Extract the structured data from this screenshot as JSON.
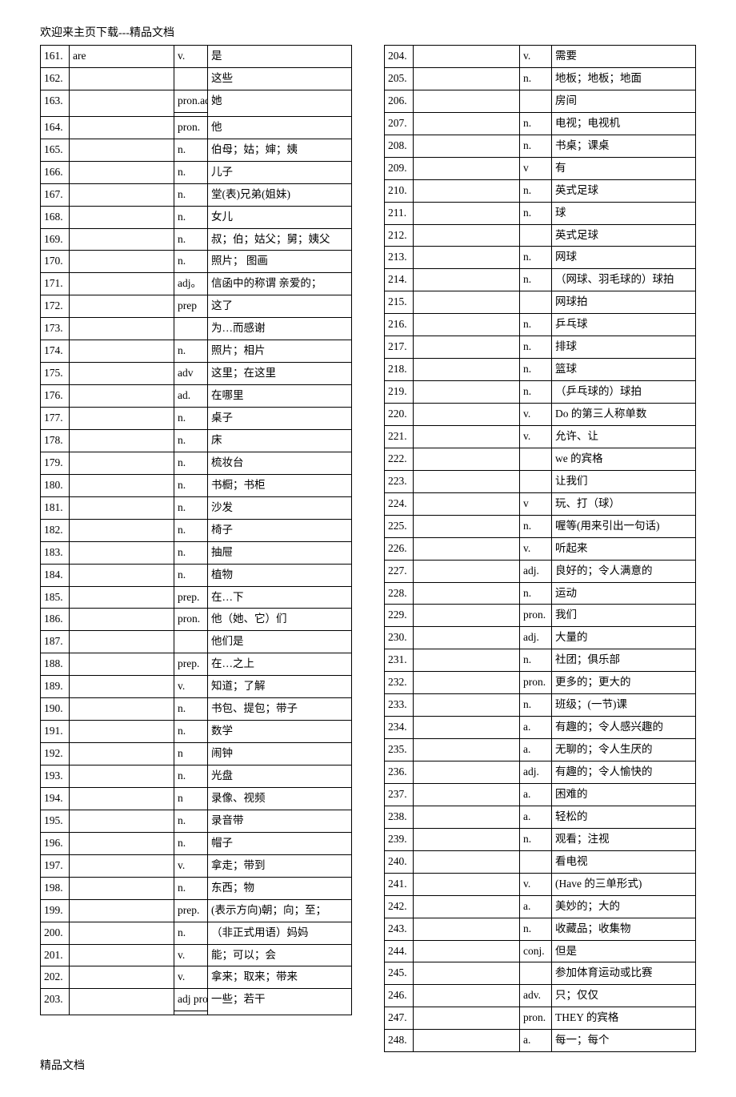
{
  "header_text": "欢迎来主页下载---精品文档",
  "footer_text": "精品文档",
  "left_rows": [
    {
      "num": "161.",
      "word": "are",
      "pos": "v.",
      "def": "是"
    },
    {
      "num": "162.",
      "word": "",
      "pos": "",
      "def": "这些"
    },
    {
      "num": "163.",
      "word": "",
      "pos": "pron.adj",
      "def": "她"
    },
    {
      "num": "",
      "word": "",
      "pos": "",
      "def": ""
    },
    {
      "num": "164.",
      "word": "",
      "pos": "pron.",
      "def": "他"
    },
    {
      "num": "165.",
      "word": "",
      "pos": "n.",
      "def": "伯母；姑；婶；姨"
    },
    {
      "num": "166.",
      "word": "",
      "pos": "n.",
      "def": "儿子"
    },
    {
      "num": "167.",
      "word": "",
      "pos": "n.",
      "def": "堂(表)兄弟(姐妹)"
    },
    {
      "num": "168.",
      "word": "",
      "pos": "n.",
      "def": "女儿"
    },
    {
      "num": "169.",
      "word": "",
      "pos": "n.",
      "def": "叔；伯；姑父；舅；姨父"
    },
    {
      "num": "170.",
      "word": "",
      "pos": "n.",
      "def": "照片； 图画"
    },
    {
      "num": "171.",
      "word": "",
      "pos": "adj。",
      "def": "信函中的称谓 亲爱的；"
    },
    {
      "num": "172.",
      "word": "",
      "pos": "prep",
      "def": "这了"
    },
    {
      "num": "173.",
      "word": "",
      "pos": "",
      "def": "为…而感谢"
    },
    {
      "num": "174.",
      "word": "",
      "pos": "n.",
      "def": "照片；相片"
    },
    {
      "num": "175.",
      "word": "",
      "pos": "adv",
      "def": "这里；在这里"
    },
    {
      "num": "176.",
      "word": "",
      "pos": "ad.",
      "def": "在哪里"
    },
    {
      "num": "177.",
      "word": "",
      "pos": "n.",
      "def": "桌子"
    },
    {
      "num": "178.",
      "word": "",
      "pos": "n.",
      "def": "床"
    },
    {
      "num": "179.",
      "word": "",
      "pos": "n.",
      "def": "梳妆台"
    },
    {
      "num": "180.",
      "word": "",
      "pos": "n.",
      "def": "书橱；书柜"
    },
    {
      "num": "181.",
      "word": "",
      "pos": "n.",
      "def": "沙发"
    },
    {
      "num": "182.",
      "word": "",
      "pos": "n.",
      "def": "椅子"
    },
    {
      "num": "183.",
      "word": "",
      "pos": "n.",
      "def": "抽屉"
    },
    {
      "num": "184.",
      "word": "",
      "pos": "n.",
      "def": "植物"
    },
    {
      "num": "185.",
      "word": "",
      "pos": "prep.",
      "def": "在…下"
    },
    {
      "num": "186.",
      "word": "",
      "pos": "pron.",
      "def": "他（她、它）们"
    },
    {
      "num": "187.",
      "word": "",
      "pos": "",
      "def": "他们是"
    },
    {
      "num": "188.",
      "word": "",
      "pos": "prep.",
      "def": "在…之上"
    },
    {
      "num": "189.",
      "word": "",
      "pos": "v.",
      "def": "知道；了解"
    },
    {
      "num": "190.",
      "word": "",
      "pos": "n.",
      "def": "书包、提包；带子"
    },
    {
      "num": "191.",
      "word": "",
      "pos": "n.",
      "def": "数学"
    },
    {
      "num": "192.",
      "word": "",
      "pos": "n",
      "def": "闹钟"
    },
    {
      "num": "193.",
      "word": "",
      "pos": "n.",
      "def": "光盘"
    },
    {
      "num": "194.",
      "word": "",
      "pos": "n",
      "def": "录像、视频"
    },
    {
      "num": "195.",
      "word": "",
      "pos": "n.",
      "def": "录音带"
    },
    {
      "num": "196.",
      "word": "",
      "pos": "n.",
      "def": "帽子"
    },
    {
      "num": "197.",
      "word": "",
      "pos": "v.",
      "def": "拿走；带到"
    },
    {
      "num": "198.",
      "word": "",
      "pos": "n.",
      "def": "东西；物"
    },
    {
      "num": "199.",
      "word": "",
      "pos": "prep.",
      "def": "(表示方向)朝；向；至；"
    },
    {
      "num": "200.",
      "word": "",
      "pos": "n.",
      "def": "（非正式用语）妈妈"
    },
    {
      "num": "201.",
      "word": "",
      "pos": "v.",
      "def": "能；可以；会"
    },
    {
      "num": "202.",
      "word": "",
      "pos": "v.",
      "def": "拿来；取来；带来"
    },
    {
      "num": "203.",
      "word": "",
      "pos": "adj pron",
      "def": "一些；若干"
    },
    {
      "num": "",
      "word": "",
      "pos": "",
      "def": ""
    }
  ],
  "left_rowspans": {
    "2": {
      "num": 2,
      "word": 2,
      "def": 2
    },
    "43": {
      "num": 2,
      "word": 2,
      "def": 2
    }
  },
  "right_rows": [
    {
      "num": "204.",
      "word": "",
      "pos": "v.",
      "def": "需要"
    },
    {
      "num": "205.",
      "word": "",
      "pos": "n.",
      "def": "地板；地板；地面"
    },
    {
      "num": "206.",
      "word": "",
      "pos": "",
      "def": "房间"
    },
    {
      "num": "207.",
      "word": "",
      "pos": "n.",
      "def": "电视；电视机"
    },
    {
      "num": "208.",
      "word": "",
      "pos": "n.",
      "def": "书桌；课桌"
    },
    {
      "num": "209.",
      "word": "",
      "pos": "v",
      "def": "有"
    },
    {
      "num": "210.",
      "word": "",
      "pos": "n.",
      "def": "英式足球"
    },
    {
      "num": "211.",
      "word": "",
      "pos": "n.",
      "def": "球"
    },
    {
      "num": "212.",
      "word": "",
      "pos": "",
      "def": "英式足球"
    },
    {
      "num": "213.",
      "word": "",
      "pos": "n.",
      "def": "网球"
    },
    {
      "num": "214.",
      "word": "",
      "pos": "n.",
      "def": "（网球、羽毛球的）球拍"
    },
    {
      "num": "215.",
      "word": "",
      "pos": "",
      "def": "网球拍"
    },
    {
      "num": "216.",
      "word": "",
      "pos": "n.",
      "def": "乒乓球"
    },
    {
      "num": "217.",
      "word": "",
      "pos": "n.",
      "def": "排球"
    },
    {
      "num": "218.",
      "word": "",
      "pos": "n.",
      "def": "篮球"
    },
    {
      "num": "219.",
      "word": "",
      "pos": "n.",
      "def": "（乒乓球的）球拍"
    },
    {
      "num": "220.",
      "word": "",
      "pos": "v.",
      "def": "Do 的第三人称单数"
    },
    {
      "num": "221.",
      "word": "",
      "pos": "v.",
      "def": "允许、让"
    },
    {
      "num": "222.",
      "word": "",
      "pos": "",
      "def": "we 的宾格"
    },
    {
      "num": "223.",
      "word": "",
      "pos": "",
      "def": "让我们"
    },
    {
      "num": "224.",
      "word": "",
      "pos": "v",
      "def": "玩、打（球）"
    },
    {
      "num": "225.",
      "word": "",
      "pos": "n.",
      "def": "喔等(用来引出一句话)"
    },
    {
      "num": "226.",
      "word": "",
      "pos": "v.",
      "def": "听起来"
    },
    {
      "num": "227.",
      "word": "",
      "pos": "adj.",
      "def": "良好的；令人满意的"
    },
    {
      "num": "228.",
      "word": "",
      "pos": "n.",
      "def": "运动"
    },
    {
      "num": "229.",
      "word": "",
      "pos": "pron.",
      "def": "我们"
    },
    {
      "num": "230.",
      "word": "",
      "pos": "adj.",
      "def": "大量的"
    },
    {
      "num": "231.",
      "word": "",
      "pos": "n.",
      "def": "社团；俱乐部"
    },
    {
      "num": "232.",
      "word": "",
      "pos": "pron.",
      "def": "更多的；更大的"
    },
    {
      "num": "233.",
      "word": "",
      "pos": "n.",
      "def": "班级；(一节)课"
    },
    {
      "num": "234.",
      "word": "",
      "pos": "a.",
      "def": "有趣的；令人感兴趣的"
    },
    {
      "num": "235.",
      "word": "",
      "pos": "a.",
      "def": "无聊的；令人生厌的"
    },
    {
      "num": "236.",
      "word": "",
      "pos": "adj.",
      "def": "有趣的；令人愉快的"
    },
    {
      "num": "237.",
      "word": "",
      "pos": "a.",
      "def": "困难的"
    },
    {
      "num": "238.",
      "word": "",
      "pos": "a.",
      "def": "轻松的"
    },
    {
      "num": "239.",
      "word": "",
      "pos": "n.",
      "def": "观看；注视"
    },
    {
      "num": "240.",
      "word": "",
      "pos": "",
      "def": "看电视"
    },
    {
      "num": "241.",
      "word": "",
      "pos": "v.",
      "def": "(Have 的三单形式)"
    },
    {
      "num": "242.",
      "word": "",
      "pos": "a.",
      "def": "美妙的；大的"
    },
    {
      "num": "243.",
      "word": "",
      "pos": "n.",
      "def": "收藏品；收集物"
    },
    {
      "num": "244.",
      "word": "",
      "pos": "conj.",
      "def": "但是"
    },
    {
      "num": "245.",
      "word": "",
      "pos": "",
      "def": "参加体育运动或比赛"
    },
    {
      "num": "246.",
      "word": "",
      "pos": "adv.",
      "def": "只；仅仅"
    },
    {
      "num": "247.",
      "word": "",
      "pos": "pron.",
      "def": "THEY 的宾格"
    },
    {
      "num": "248.",
      "word": "",
      "pos": "a.",
      "def": "每一；每个"
    }
  ]
}
